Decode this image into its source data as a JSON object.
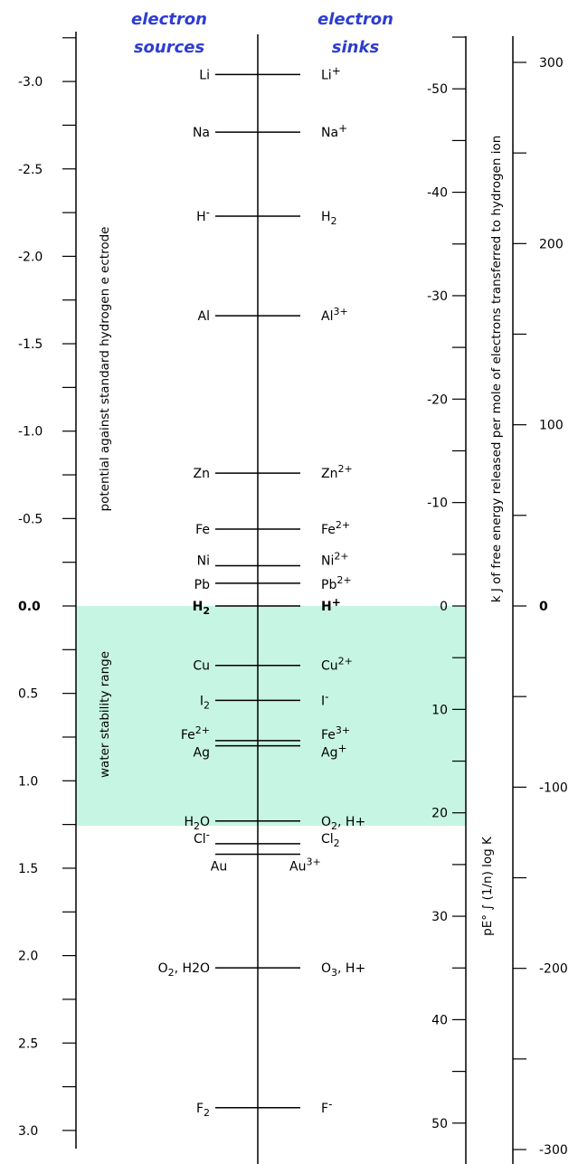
{
  "headers": {
    "sources": [
      "electron",
      "sources"
    ],
    "sinks": [
      "electron",
      "sinks"
    ],
    "color": "#2e3cd1"
  },
  "left_axis": {
    "label": "potential against standard hydrogen e ectrode",
    "ticks": [
      "-3.0",
      "-2.5",
      "-2.0",
      "-1.5",
      "-1.0",
      "-0.5",
      "0.0",
      "0.5",
      "1.0",
      "1.5",
      "2.0",
      "2.5",
      "3.0"
    ]
  },
  "water_band": {
    "label": "water stability range",
    "color": "#c7f5e3"
  },
  "couples": [
    {
      "id": "li",
      "E": -3.04,
      "source": "Li",
      "sink": "Li+"
    },
    {
      "id": "na",
      "E": -2.71,
      "source": "Na",
      "sink": "Na+"
    },
    {
      "id": "h",
      "E": -2.23,
      "source": "H-",
      "sink": "H2"
    },
    {
      "id": "al",
      "E": -1.66,
      "source": "Al",
      "sink": "Al3+"
    },
    {
      "id": "zn",
      "E": -0.76,
      "source": "Zn",
      "sink": "Zn2+"
    },
    {
      "id": "fe",
      "E": -0.44,
      "source": "Fe",
      "sink": "Fe2+"
    },
    {
      "id": "ni",
      "E": -0.23,
      "source": "Ni",
      "sink": "Ni2+"
    },
    {
      "id": "pb",
      "E": -0.13,
      "source": "Pb",
      "sink": "Pb2+"
    },
    {
      "id": "h2",
      "E": 0.0,
      "source": "H2",
      "sink": "H+",
      "bold": true
    },
    {
      "id": "cu",
      "E": 0.34,
      "source": "Cu",
      "sink": "Cu2+"
    },
    {
      "id": "i",
      "E": 0.54,
      "source": "I2",
      "sink": "I-"
    },
    {
      "id": "fe3",
      "E": 0.77,
      "source": "Fe2+",
      "sink": "Fe3+"
    },
    {
      "id": "ag",
      "E": 0.8,
      "source": "Ag",
      "sink": "Ag+"
    },
    {
      "id": "o2",
      "E": 1.23,
      "source": "H2O",
      "sink": "O2, H+"
    },
    {
      "id": "cl",
      "E": 1.36,
      "source": "Cl-",
      "sink": "Cl2"
    },
    {
      "id": "au",
      "E": 1.42,
      "source": "Au",
      "sink": "Au3+"
    },
    {
      "id": "o3",
      "E": 2.07,
      "source": "O2, H2O",
      "sink": "O3, H+"
    },
    {
      "id": "f",
      "E": 2.87,
      "source": "F2",
      "sink": "F-"
    }
  ],
  "pe_axis": {
    "label": "pE° ∫ (1/n) log K",
    "ticks": [
      "-50",
      "-40",
      "-30",
      "-20",
      "-10",
      "0",
      "10",
      "20",
      "30",
      "40",
      "50"
    ]
  },
  "energy_axis": {
    "label": "k J of free energy released per mole of electrons transferred to hydrogen ion",
    "ticks": [
      "300",
      "200",
      "100",
      "0",
      "-100",
      "-200",
      "-300"
    ]
  }
}
